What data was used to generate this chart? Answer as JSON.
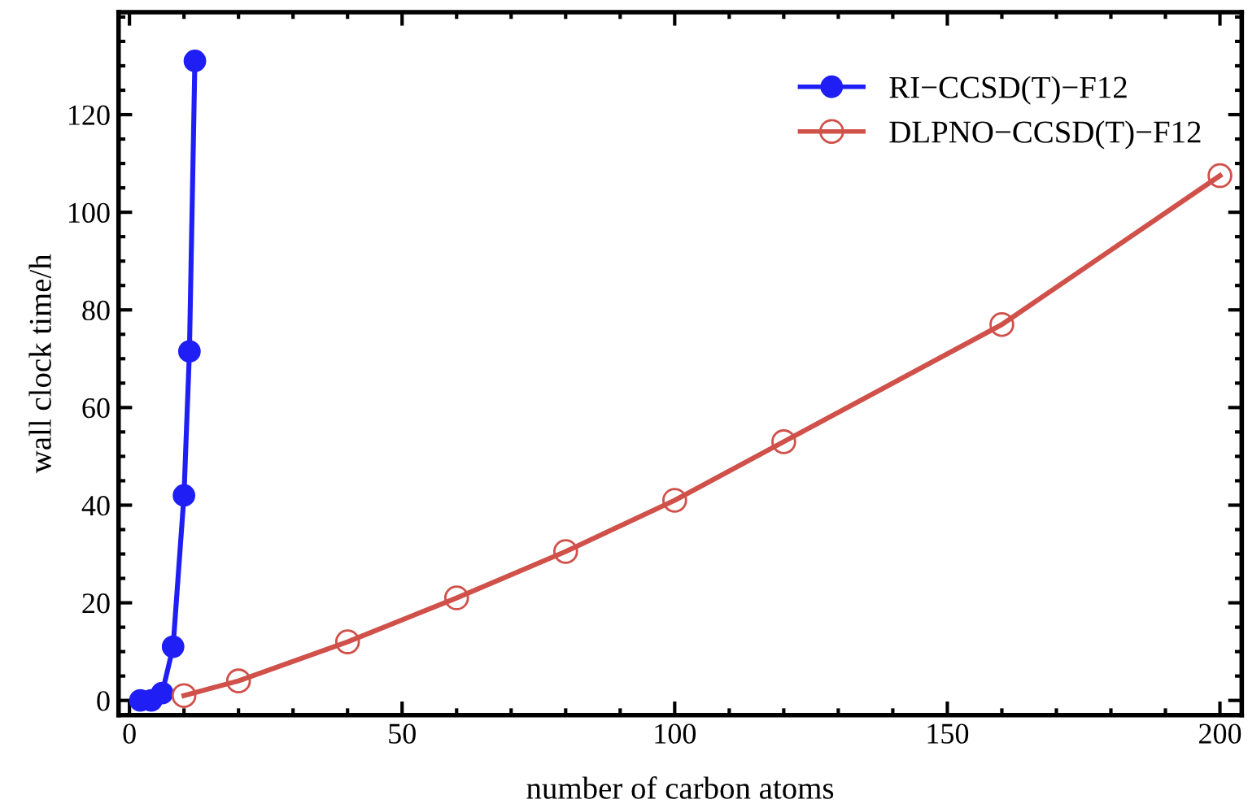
{
  "chart_data": {
    "type": "line",
    "xlabel": "number of carbon atoms",
    "ylabel": "wall clock time/h",
    "xlim": [
      -2,
      204
    ],
    "ylim": [
      -3,
      141
    ],
    "xticks": [
      0,
      50,
      100,
      150,
      200
    ],
    "yticks": [
      0,
      20,
      40,
      60,
      80,
      100,
      120
    ],
    "grid": false,
    "legend": "top right",
    "series": [
      {
        "name": "RI−CCSD(T)−F12",
        "color": "#1f1ff5",
        "marker": "circle",
        "x": [
          2,
          4,
          6,
          8,
          10,
          11,
          12
        ],
        "values": [
          0,
          0,
          1.5,
          11,
          42,
          71.5,
          131
        ]
      },
      {
        "name": "DLPNO−CCSD(T)−F12",
        "color": "#d0504a",
        "marker": "circle",
        "x": [
          10,
          20,
          40,
          60,
          80,
          100,
          120,
          160,
          200
        ],
        "values": [
          1,
          4,
          12,
          21,
          30.5,
          41,
          53,
          77,
          107.5
        ]
      }
    ]
  }
}
